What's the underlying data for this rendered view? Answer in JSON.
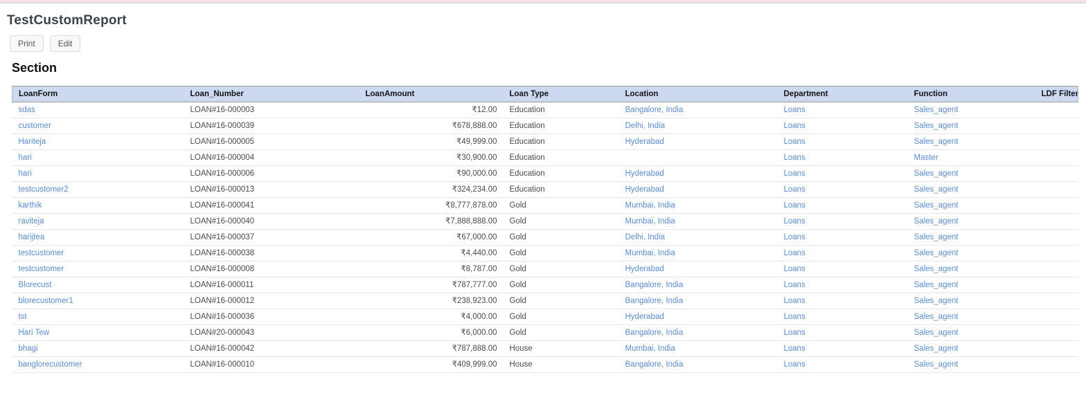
{
  "page": {
    "title": "TestCustomReport",
    "section_heading": "Section"
  },
  "toolbar": {
    "print_label": "Print",
    "edit_label": "Edit"
  },
  "colors": {
    "link": "#5b8cc9",
    "table_header_bg": "#ccd9f0",
    "top_bar": "#f7e0e0"
  },
  "table": {
    "columns": [
      {
        "key": "loanform",
        "label": "LoanForm",
        "header_align": "left",
        "cell_align": "left",
        "link": true
      },
      {
        "key": "loan_number",
        "label": "Loan_Number",
        "header_align": "left",
        "cell_align": "left",
        "link": false
      },
      {
        "key": "loanamount",
        "label": "LoanAmount",
        "header_align": "left",
        "cell_align": "right",
        "link": false
      },
      {
        "key": "loan_type",
        "label": "Loan Type",
        "header_align": "left",
        "cell_align": "left",
        "link": false
      },
      {
        "key": "location",
        "label": "Location",
        "header_align": "left",
        "cell_align": "left",
        "link": true
      },
      {
        "key": "department",
        "label": "Department",
        "header_align": "left",
        "cell_align": "left",
        "link": true
      },
      {
        "key": "function",
        "label": "Function",
        "header_align": "left",
        "cell_align": "left",
        "link": true
      },
      {
        "key": "ldf_filter",
        "label": "LDF Filter",
        "header_align": "right",
        "cell_align": "left",
        "link": false
      }
    ],
    "rows": [
      [
        "sdas",
        "LOAN#16-000003",
        "₹12.00",
        "Education",
        "Bangalore, India",
        "Loans",
        "Sales_agent",
        ""
      ],
      [
        "customer",
        "LOAN#16-000039",
        "₹678,888.00",
        "Education",
        "Delhi, India",
        "Loans",
        "Sales_agent",
        ""
      ],
      [
        "Hariteja",
        "LOAN#16-000005",
        "₹49,999.00",
        "Education",
        "Hyderabad",
        "Loans",
        "Sales_agent",
        ""
      ],
      [
        "hari",
        "LOAN#16-000004",
        "₹30,900.00",
        "Education",
        "",
        "Loans",
        "Master",
        ""
      ],
      [
        "hari",
        "LOAN#16-000006",
        "₹90,000.00",
        "Education",
        "Hyderabad",
        "Loans",
        "Sales_agent",
        ""
      ],
      [
        "testcustomer2",
        "LOAN#16-000013",
        "₹324,234.00",
        "Education",
        "Hyderabad",
        "Loans",
        "Sales_agent",
        ""
      ],
      [
        "karthik",
        "LOAN#16-000041",
        "₹8,777,878.00",
        "Gold",
        "Mumbai, India",
        "Loans",
        "Sales_agent",
        ""
      ],
      [
        "raviteja",
        "LOAN#16-000040",
        "₹7,888,888.00",
        "Gold",
        "Mumbai, India",
        "Loans",
        "Sales_agent",
        ""
      ],
      [
        "harijtea",
        "LOAN#16-000037",
        "₹67,000.00",
        "Gold",
        "Delhi, India",
        "Loans",
        "Sales_agent",
        ""
      ],
      [
        "testcustomer",
        "LOAN#16-000038",
        "₹4,440.00",
        "Gold",
        "Mumbai, India",
        "Loans",
        "Sales_agent",
        ""
      ],
      [
        "testcustomer",
        "LOAN#16-000008",
        "₹8,787.00",
        "Gold",
        "Hyderabad",
        "Loans",
        "Sales_agent",
        ""
      ],
      [
        "Blorecust",
        "LOAN#16-000011",
        "₹787,777.00",
        "Gold",
        "Bangalore, India",
        "Loans",
        "Sales_agent",
        ""
      ],
      [
        "blorecustomer1",
        "LOAN#16-000012",
        "₹238,923.00",
        "Gold",
        "Bangalore, India",
        "Loans",
        "Sales_agent",
        ""
      ],
      [
        "tst",
        "LOAN#16-000036",
        "₹4,000.00",
        "Gold",
        "Hyderabad",
        "Loans",
        "Sales_agent",
        ""
      ],
      [
        "Hari Tew",
        "LOAN#20-000043",
        "₹6,000.00",
        "Gold",
        "Bangalore, India",
        "Loans",
        "Sales_agent",
        ""
      ],
      [
        "bhagi",
        "LOAN#16-000042",
        "₹787,888.00",
        "House",
        "Mumbai, India",
        "Loans",
        "Sales_agent",
        ""
      ],
      [
        "banglorecustomer",
        "LOAN#16-000010",
        "₹409,999.00",
        "House",
        "Bangalore, India",
        "Loans",
        "Sales_agent",
        ""
      ]
    ]
  }
}
